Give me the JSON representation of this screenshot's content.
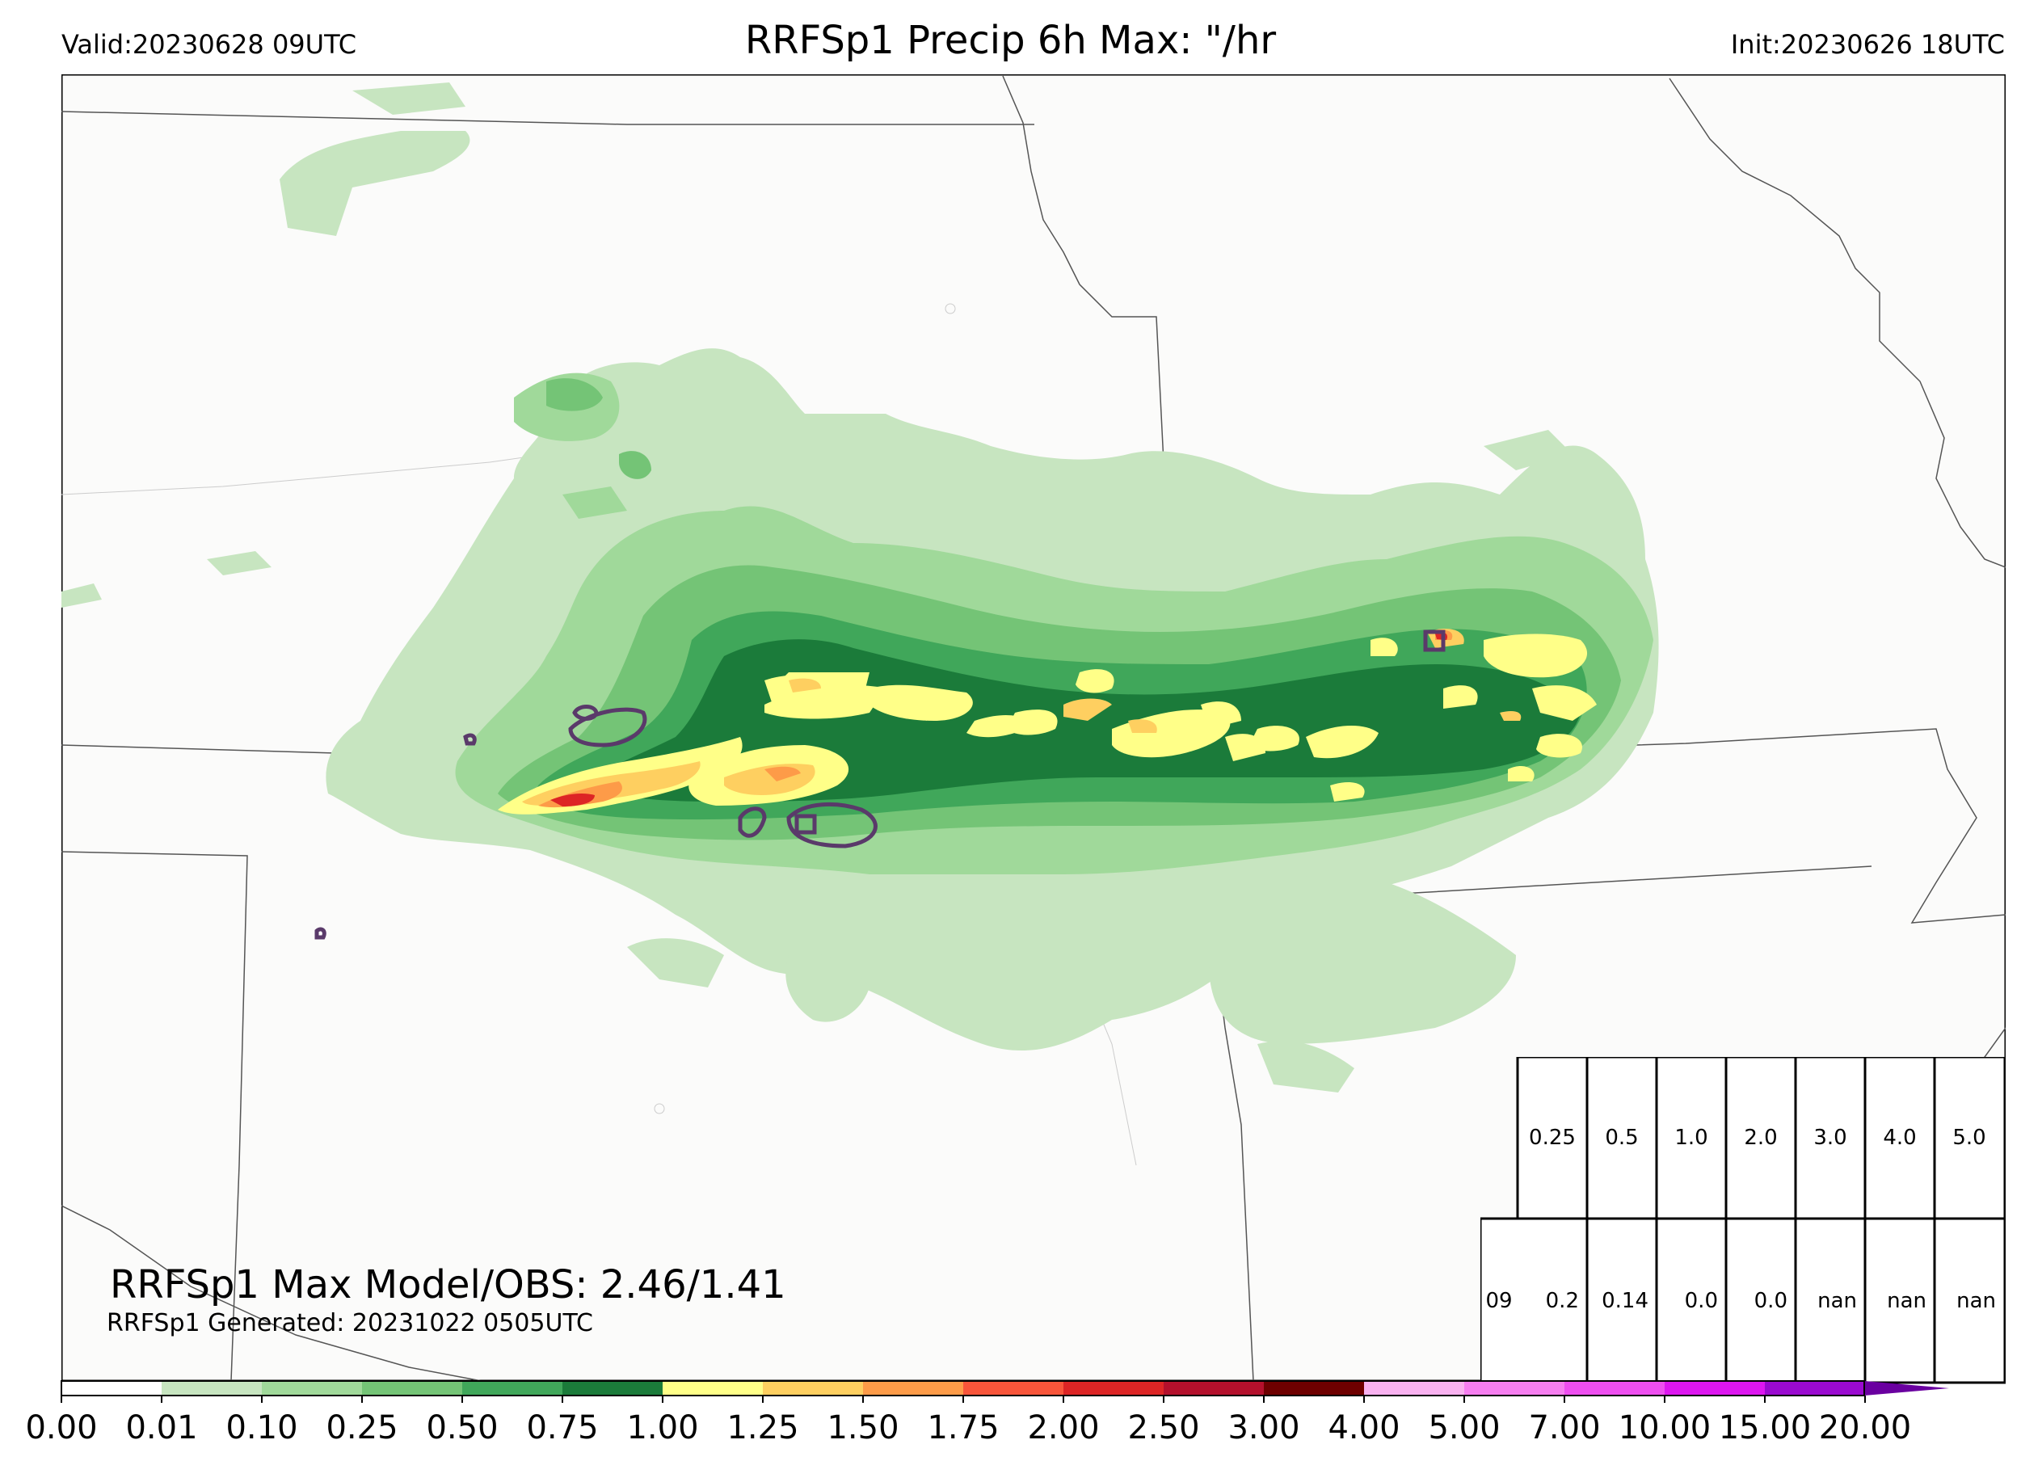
{
  "header": {
    "valid": "Valid:20230628 09UTC",
    "title": "RRFSp1 Precip 6h Max: \"/hr",
    "init": "Init:20230626 18UTC"
  },
  "footer": {
    "max_text": "RRFSp1 Max Model/OBS: 2.46/1.41",
    "generated": "RRFSp1 Generated: 20231022 0505UTC"
  },
  "threshold_table": {
    "header_row": [
      "0.25",
      "0.5",
      "1.0",
      "2.0",
      "3.0",
      "4.0",
      "5.0"
    ],
    "data_row": [
      "09",
      "0.2",
      "0.14",
      "0.0",
      "0.0",
      "nan",
      "nan",
      "nan"
    ]
  },
  "colorbar": {
    "tick_labels": [
      "0.00",
      "0.01",
      "0.10",
      "0.25",
      "0.50",
      "0.75",
      "1.00",
      "1.25",
      "1.50",
      "1.75",
      "2.00",
      "2.50",
      "3.00",
      "4.00",
      "5.00",
      "7.00",
      "10.00",
      "15.00",
      "20.00"
    ],
    "colors": [
      "#ffffff",
      "#c7e5c0",
      "#a0d99a",
      "#74c476",
      "#40a75a",
      "#1b7b3a",
      "#ffff88",
      "#fecf60",
      "#fd9b48",
      "#f8553a",
      "#dd2525",
      "#b4102c",
      "#6e0000",
      "#f9b2f0",
      "#f67ef0",
      "#ee4ef0",
      "#dd16f0",
      "#9a0ad0"
    ],
    "extend_color": "#6a00a0"
  },
  "precip_colors": {
    "light": "#c7e5c0",
    "light2": "#a0d99a",
    "mid": "#74c476",
    "mid2": "#40a75a",
    "dark": "#1b7b3a",
    "yellow": "#ffff88",
    "orange": "#fecf60",
    "orange2": "#fd9b48",
    "red": "#dd2525",
    "obs_contour": "#5a3a6a"
  }
}
